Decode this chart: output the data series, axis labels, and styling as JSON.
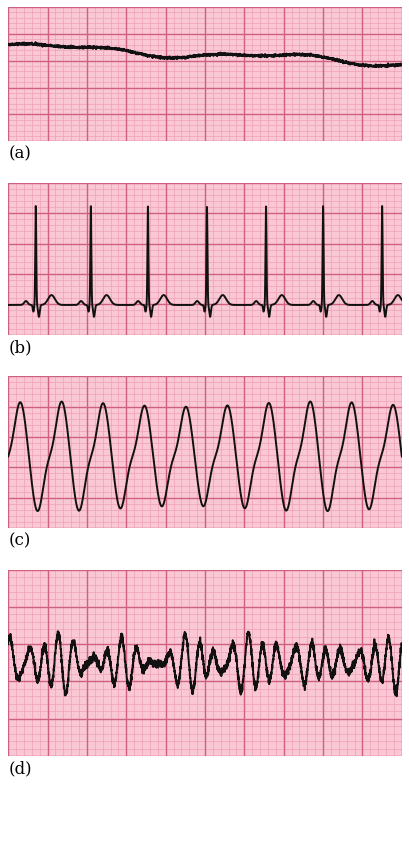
{
  "bg_color": "#F9C8D4",
  "grid_minor_color": "#F0A0B8",
  "grid_major_color": "#D06080",
  "ecg_color": "#111111",
  "ecg_linewidth": 1.4,
  "label_fontsize": 12,
  "labels": [
    "(a)",
    "(b)",
    "(c)",
    "(d)"
  ]
}
